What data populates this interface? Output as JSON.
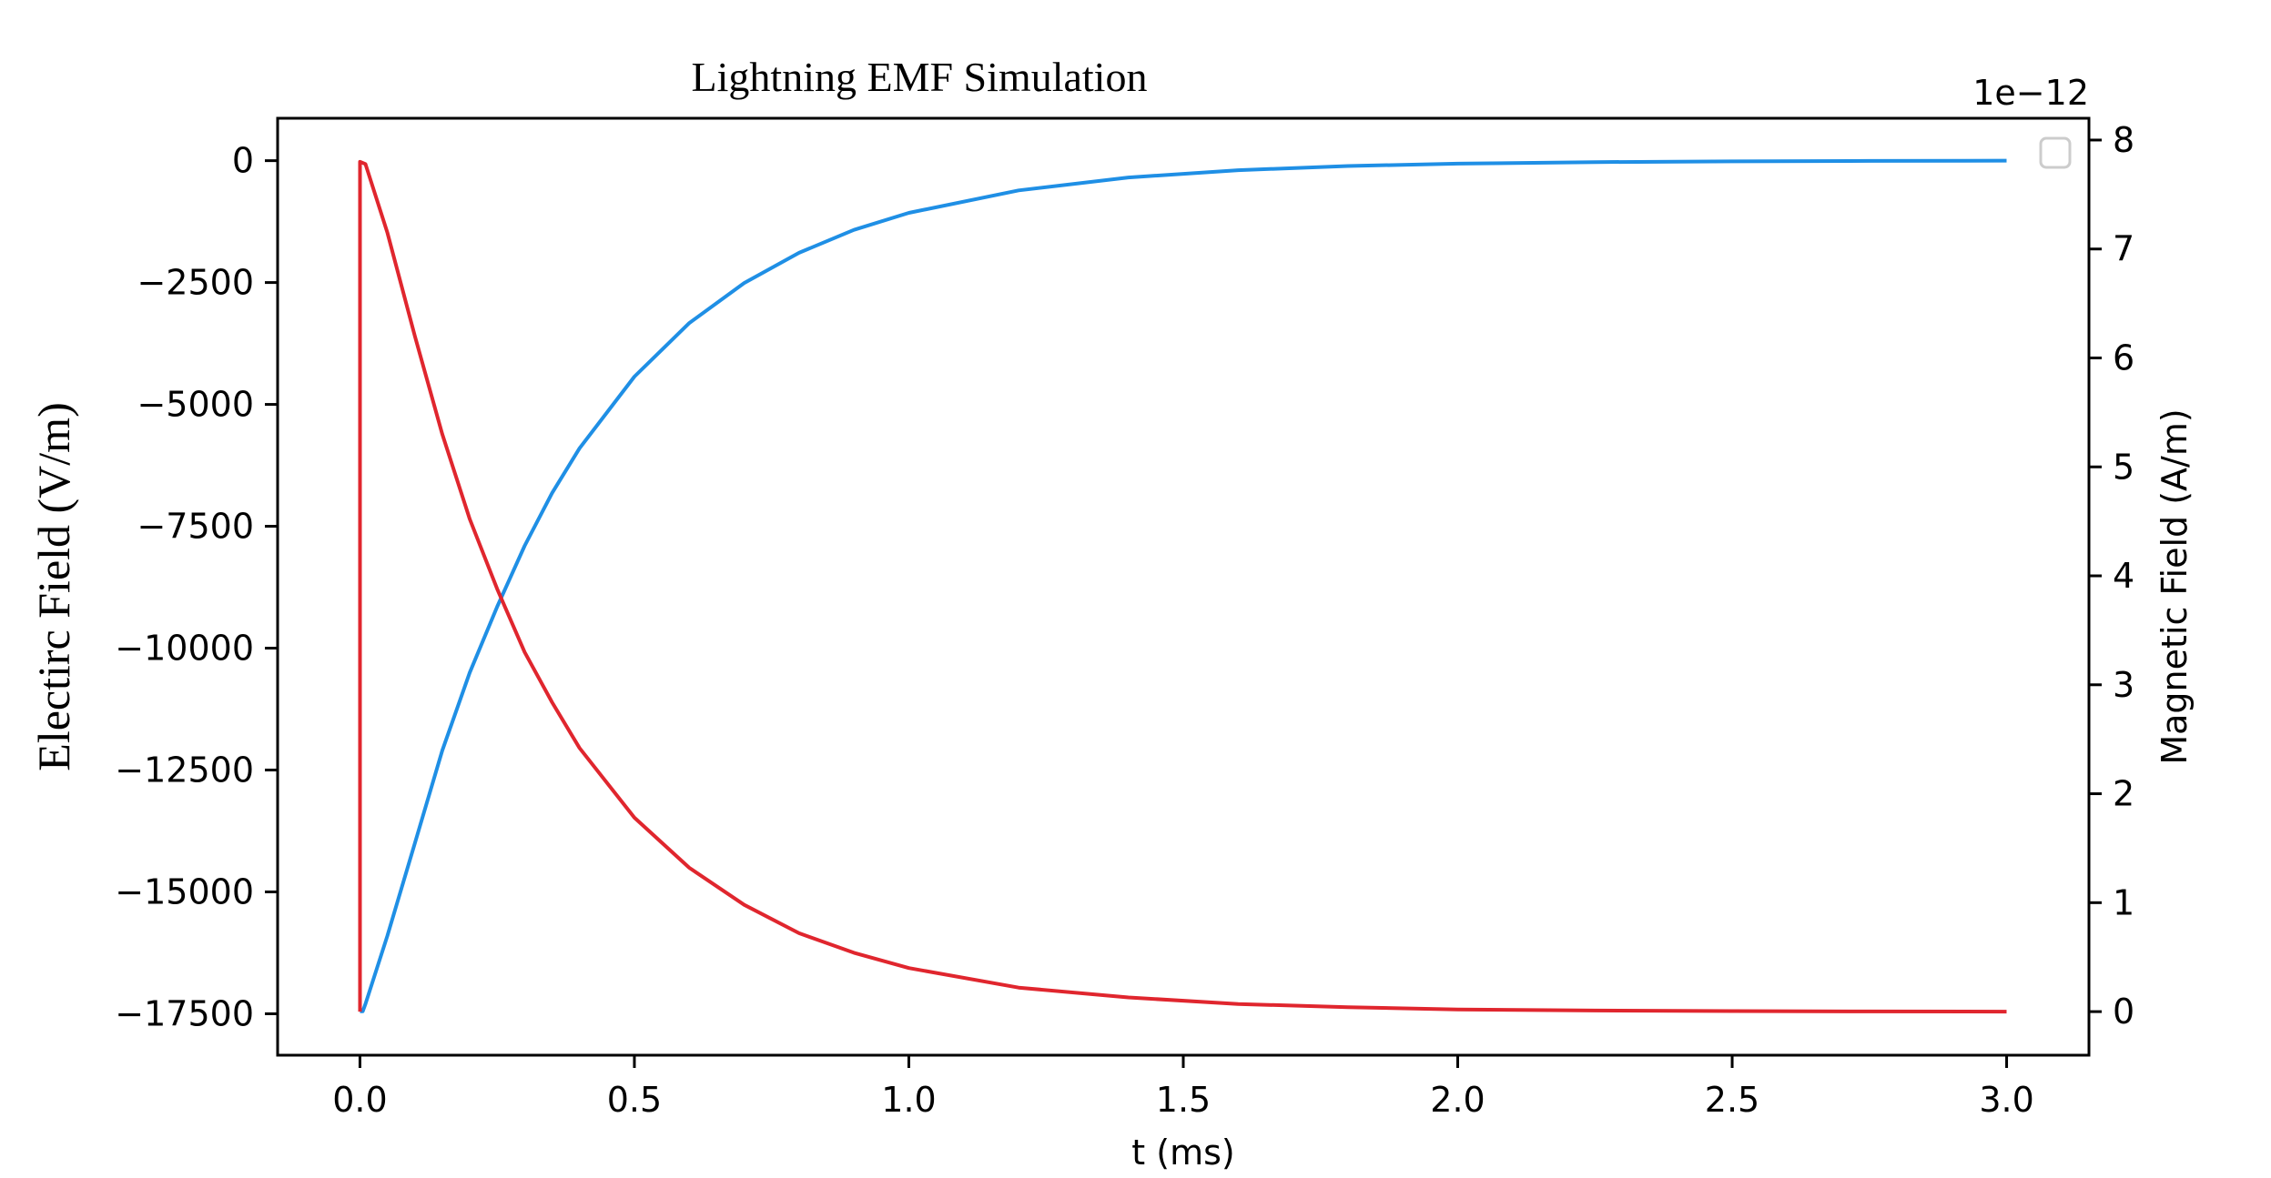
{
  "chart_data": {
    "type": "line",
    "title": "Lightning EMF Simulation",
    "xlabel": "t (ms)",
    "ylabel_left": "Electirc Field (V/m)",
    "ylabel_right": "Magnetic Field (A/m)",
    "right_axis_offset_text": "1e−12",
    "xlim": [
      -0.15,
      3.15
    ],
    "ylim_left": [
      -18350,
      870
    ],
    "ylim_right": [
      -0.4,
      8.2
    ],
    "x_ticks": [
      0.0,
      0.5,
      1.0,
      1.5,
      2.0,
      2.5,
      3.0
    ],
    "x_tick_labels": [
      "0.0",
      "0.5",
      "1.0",
      "1.5",
      "2.0",
      "2.5",
      "3.0"
    ],
    "y_left_ticks": [
      0,
      -2500,
      -5000,
      -7500,
      -10000,
      -12500,
      -15000,
      -17500
    ],
    "y_left_tick_labels": [
      "0",
      "−2500",
      "−5000",
      "−7500",
      "−10000",
      "−12500",
      "−15000",
      "−17500"
    ],
    "y_right_ticks": [
      0,
      1,
      2,
      3,
      4,
      5,
      6,
      7,
      8
    ],
    "y_right_tick_labels": [
      "0",
      "1",
      "2",
      "3",
      "4",
      "5",
      "6",
      "7",
      "8"
    ],
    "legend": {
      "placement": "top-right",
      "entries": []
    },
    "grid": false,
    "series": [
      {
        "axis": "left",
        "color": "#1f8fe5",
        "x": [
          0.0,
          0.005,
          0.01,
          0.05,
          0.1,
          0.15,
          0.2,
          0.25,
          0.3,
          0.35,
          0.4,
          0.5,
          0.6,
          0.7,
          0.8,
          0.9,
          1.0,
          1.2,
          1.4,
          1.6,
          1.8,
          2.0,
          2.25,
          2.5,
          2.75,
          3.0
        ],
        "values": [
          -17450,
          -17450,
          -17300,
          -15900,
          -14000,
          -12100,
          -10500,
          -9150,
          -7900,
          -6820,
          -5900,
          -4430,
          -3330,
          -2510,
          -1890,
          -1420,
          -1070,
          -610,
          -345,
          -195,
          -110,
          -62,
          -30,
          -15,
          -5,
          0
        ]
      },
      {
        "axis": "right",
        "color": "#e0262e",
        "x": [
          0.0,
          0.0,
          0.01,
          0.05,
          0.1,
          0.15,
          0.2,
          0.25,
          0.3,
          0.35,
          0.4,
          0.5,
          0.6,
          0.7,
          0.8,
          0.9,
          1.0,
          1.2,
          1.4,
          1.6,
          1.8,
          2.0,
          2.25,
          2.5,
          2.75,
          3.0
        ],
        "values": [
          0.0,
          7.8,
          7.78,
          7.15,
          6.2,
          5.3,
          4.52,
          3.88,
          3.3,
          2.84,
          2.42,
          1.78,
          1.32,
          0.98,
          0.72,
          0.54,
          0.4,
          0.22,
          0.13,
          0.07,
          0.04,
          0.02,
          0.01,
          0.005,
          0.002,
          0.0
        ]
      }
    ]
  }
}
